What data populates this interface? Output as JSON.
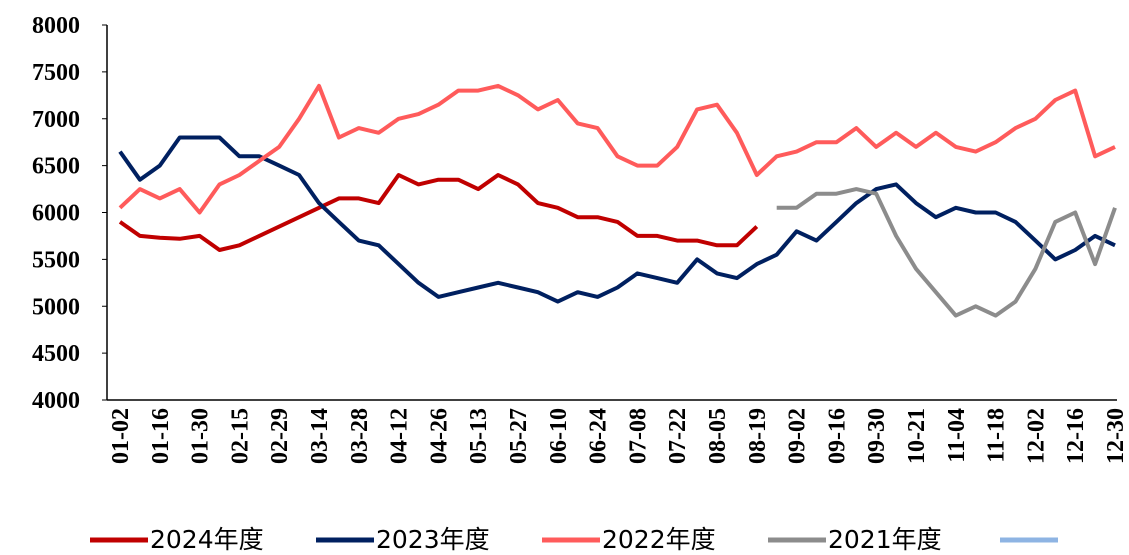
{
  "chart_data": {
    "type": "line",
    "categories": [
      "01-02",
      null,
      "01-16",
      null,
      "01-30",
      null,
      "02-15",
      null,
      "02-29",
      null,
      "03-14",
      null,
      "03-28",
      null,
      "04-12",
      null,
      "04-26",
      null,
      "05-13",
      null,
      "05-27",
      null,
      "06-10",
      null,
      "06-24",
      null,
      "07-08",
      null,
      "07-22",
      null,
      "08-05",
      null,
      "08-19",
      null,
      "09-02",
      null,
      "09-16",
      null,
      "09-30",
      null,
      "10-21",
      null,
      "11-04",
      null,
      "11-18",
      null,
      "12-02",
      null,
      "12-16",
      null,
      "12-30"
    ],
    "series": [
      {
        "name": "2024年度",
        "color": "#c00000",
        "values": [
          5900,
          5750,
          5730,
          5720,
          5750,
          5600,
          5650,
          5750,
          5850,
          5950,
          6050,
          6150,
          6150,
          6100,
          6400,
          6300,
          6350,
          6350,
          6250,
          6400,
          6300,
          6100,
          6050,
          5950,
          5950,
          5900,
          5750,
          5750,
          5700,
          5700,
          5650,
          5650,
          5850,
          null,
          null,
          null,
          null,
          null,
          null,
          null,
          null,
          null,
          null,
          null,
          null,
          null,
          null,
          null,
          null,
          null,
          null
        ]
      },
      {
        "name": "2023年度",
        "color": "#002060",
        "values": [
          6650,
          6350,
          6500,
          6800,
          6800,
          6800,
          6600,
          6600,
          6500,
          6400,
          6100,
          5900,
          5700,
          5650,
          5450,
          5250,
          5100,
          5150,
          5200,
          5250,
          5200,
          5150,
          5050,
          5150,
          5100,
          5200,
          5350,
          5300,
          5250,
          5500,
          5350,
          5300,
          5450,
          5550,
          5800,
          5700,
          5900,
          6100,
          6250,
          6300,
          6100,
          5950,
          6050,
          6000,
          6000,
          5900,
          5700,
          5500,
          5600,
          5750,
          5650
        ]
      },
      {
        "name": "2022年度",
        "color": "#ff5b5b",
        "values": [
          6050,
          6250,
          6150,
          6250,
          6000,
          6300,
          6400,
          6550,
          6700,
          7000,
          7350,
          6800,
          6900,
          6850,
          7000,
          7050,
          7150,
          7300,
          7300,
          7350,
          7250,
          7100,
          7200,
          6950,
          6900,
          6600,
          6500,
          6500,
          6700,
          7100,
          7150,
          6850,
          6400,
          6600,
          6650,
          6750,
          6750,
          6900,
          6700,
          6850,
          6700,
          6850,
          6700,
          6650,
          6750,
          6900,
          7000,
          7200,
          7300,
          6600,
          6700
        ]
      },
      {
        "name": "2021年度",
        "color": "#8c8c8c",
        "values": [
          null,
          null,
          null,
          null,
          null,
          null,
          null,
          null,
          null,
          null,
          null,
          null,
          null,
          null,
          null,
          null,
          null,
          null,
          null,
          null,
          null,
          null,
          null,
          null,
          null,
          null,
          null,
          null,
          null,
          null,
          null,
          null,
          null,
          6050,
          6050,
          6200,
          6200,
          6250,
          6200,
          5750,
          5400,
          5150,
          4900,
          5000,
          4900,
          5050,
          5400,
          5900,
          6000,
          5450,
          6050
        ]
      }
    ],
    "ylim": [
      4000,
      8000
    ],
    "yticks": [
      4000,
      4500,
      5000,
      5500,
      6000,
      6500,
      7000,
      7500,
      8000
    ],
    "legend": "bottom"
  }
}
